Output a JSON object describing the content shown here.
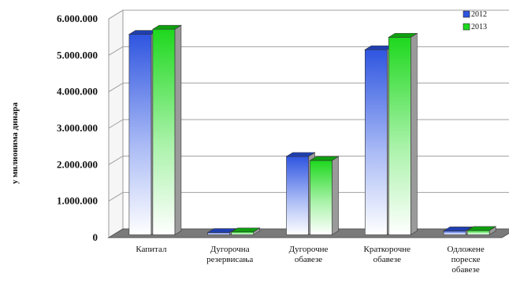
{
  "chart_data": {
    "type": "bar",
    "title": "",
    "xlabel": "",
    "ylabel": "у милионима динара",
    "ylim": [
      0,
      6000000
    ],
    "yticks": [
      0,
      1000000,
      2000000,
      3000000,
      4000000,
      5000000,
      6000000
    ],
    "ytick_labels": [
      "0",
      "1.000.000",
      "2.000.000",
      "3.000.000",
      "4.000.000",
      "5.000.000",
      "6.000.000"
    ],
    "grid": true,
    "legend_position": "top-right",
    "categories": [
      "Капитал",
      "Дугорочна резервисања",
      "Дугорочне обавезе",
      "Краткорочне обавезе",
      "Одложене пореске обавезе"
    ],
    "series": [
      {
        "name": "2012",
        "color": "#2f55e0",
        "values": [
          5500000,
          60000,
          2150000,
          5080000,
          110000
        ]
      },
      {
        "name": "2013",
        "color": "#1ed81e",
        "values": [
          5640000,
          80000,
          2040000,
          5420000,
          120000
        ]
      }
    ]
  }
}
